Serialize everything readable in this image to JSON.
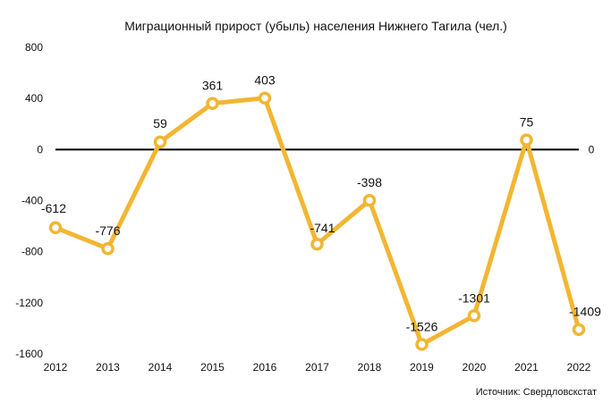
{
  "chart_data": {
    "type": "line",
    "title": "Миграционный прирост (убыль) населения Нижнего Тагила (чел.)",
    "categories": [
      "2012",
      "2013",
      "2014",
      "2015",
      "2016",
      "2017",
      "2018",
      "2019",
      "2020",
      "2021",
      "2022"
    ],
    "series": [
      {
        "name": "Миграционный прирост (убыль)",
        "values": [
          -612,
          -776,
          59,
          361,
          403,
          -741,
          -398,
          -1526,
          -1301,
          75,
          -1409
        ],
        "labels": [
          "-612",
          "-776",
          "59",
          "361",
          "403",
          "-741",
          "-398",
          "-1526",
          "-1301",
          "75",
          "-1409"
        ]
      }
    ],
    "ylim": [
      -1600,
      800
    ],
    "yticks": [
      800,
      400,
      0,
      -400,
      -800,
      -1200,
      -1600
    ],
    "ytick_labels": [
      "800",
      "400",
      "0",
      "-400",
      "-800",
      "-1200",
      "-1600"
    ],
    "zero_line_right_label": "0",
    "xlabel": "",
    "ylabel": "",
    "grid": false,
    "source": "Источник: Свердловскстат",
    "colors": {
      "line": "#F2B632",
      "marker_fill": "#ffffff",
      "zero_line": "#000000",
      "text": "#111111"
    }
  }
}
